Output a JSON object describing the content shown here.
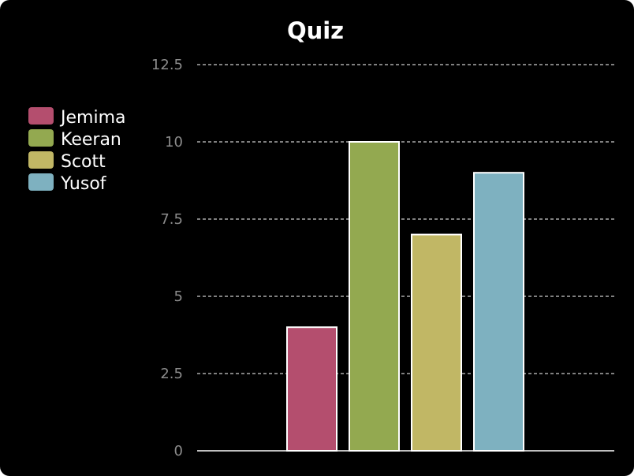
{
  "chart_data": {
    "type": "bar",
    "title": "Quiz",
    "categories": [
      "Jemima",
      "Keeran",
      "Scott",
      "Yusof"
    ],
    "values": [
      4,
      10,
      7,
      9
    ],
    "colors": [
      "#b44e6e",
      "#93a950",
      "#c1b765",
      "#7eb1c0"
    ],
    "ylim": [
      0,
      12.5
    ],
    "yticks": [
      "0",
      "2.5",
      "5",
      "7.5",
      "10",
      "12.5"
    ],
    "ytick_values": [
      0,
      2.5,
      5,
      7.5,
      10,
      12.5
    ],
    "grid": true,
    "legend": "left"
  }
}
